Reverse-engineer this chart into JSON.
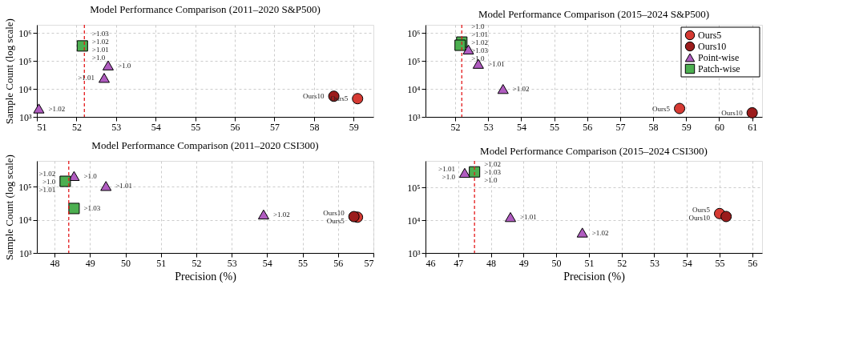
{
  "chart_data": [
    {
      "type": "scatter",
      "title": "Model Performance Comparison (2011–2020 S&P500)",
      "ylabel": "Sample Count (log scale)",
      "log": "y",
      "grid": true,
      "legend": false,
      "xlim": [
        51,
        59.5
      ],
      "xticks": [
        51,
        52,
        53,
        54,
        55,
        56,
        57,
        58,
        59
      ],
      "ylim": [
        1000,
        2000000
      ],
      "yticks": [
        {
          "value": 1000,
          "label": "10³"
        },
        {
          "value": 10000,
          "label": "10⁴"
        },
        {
          "value": 100000,
          "label": "10⁵"
        },
        {
          "value": 1000000,
          "label": "10⁶"
        }
      ],
      "series": [
        {
          "color": "#d63a33",
          "marker": "circle",
          "x": [
            59.1
          ],
          "values": [
            4500
          ]
        },
        {
          "color": "#9b1c1c",
          "marker": "circle",
          "x": [
            58.5
          ],
          "values": [
            5500
          ]
        },
        {
          "color": "#b05cc0",
          "marker": "triangle",
          "x": [
            52.8,
            52.7,
            51.05
          ],
          "values": [
            70000,
            25000,
            2000
          ]
        },
        {
          "color": "#4caf50",
          "marker": "square",
          "x": [
            52.15
          ],
          "values": [
            350000
          ]
        }
      ],
      "ref_lines": [
        {
          "axis": "x",
          "value": 52.2,
          "color": "#e41a1c",
          "line_style": "dashed"
        }
      ],
      "annotations": [
        {
          "text": ">1.03",
          "x": 52.15,
          "y": 350000
        },
        {
          "text": ">1.02",
          "x": 52.15,
          "y": 350000
        },
        {
          "text": ">1.01",
          "x": 52.15,
          "y": 350000
        },
        {
          "text": ">1.0",
          "x": 52.15,
          "y": 350000
        },
        {
          "text": ">1.0",
          "x": 52.8,
          "y": 70000
        },
        {
          "text": ">1.01",
          "x": 52.7,
          "y": 25000
        },
        {
          "text": ">1.02",
          "x": 51.05,
          "y": 2000
        },
        {
          "text": "Ours10",
          "x": 58.5,
          "y": 5500
        },
        {
          "text": "Ours5",
          "x": 59.1,
          "y": 4500
        }
      ]
    },
    {
      "type": "scatter",
      "title": "Model Performance Comparison (2015–2024 S&P500)",
      "log": "y",
      "grid": true,
      "legend": "top right",
      "xlim": [
        51.1,
        61.3
      ],
      "xticks": [
        52,
        53,
        54,
        55,
        56,
        57,
        58,
        59,
        60,
        61
      ],
      "ylim": [
        1000,
        2000000
      ],
      "yticks": [
        {
          "value": 1000,
          "label": "10³"
        },
        {
          "value": 10000,
          "label": "10⁴"
        },
        {
          "value": 100000,
          "label": "10⁵"
        },
        {
          "value": 1000000,
          "label": "10⁶"
        }
      ],
      "series": [
        {
          "name": "Ours5",
          "color": "#d63a33",
          "marker": "circle",
          "x": [
            58.8
          ],
          "values": [
            2000
          ]
        },
        {
          "name": "Ours10",
          "color": "#9b1c1c",
          "marker": "circle",
          "x": [
            61.0
          ],
          "values": [
            1400
          ]
        },
        {
          "name": "Point-wise",
          "color": "#b05cc0",
          "marker": "triangle",
          "x": [
            52.4,
            52.7,
            53.45
          ],
          "values": [
            260000,
            80000,
            10000
          ]
        },
        {
          "name": "Patch-wise",
          "color": "#4caf50",
          "marker": "square",
          "x": [
            52.2,
            52.15
          ],
          "values": [
            480000,
            370000
          ]
        }
      ],
      "ref_lines": [
        {
          "axis": "x",
          "value": 52.2,
          "color": "#e41a1c",
          "line_style": "dashed"
        }
      ],
      "annotations": [
        {
          "text": ">1.0",
          "x": 52.2,
          "y": 480000
        },
        {
          "text": ">1.01",
          "x": 52.15,
          "y": 370000
        },
        {
          "text": ">1.02",
          "x": 52.15,
          "y": 370000
        },
        {
          "text": ">1.03",
          "x": 52.15,
          "y": 370000
        },
        {
          "text": ">1.0",
          "x": 52.4,
          "y": 260000
        },
        {
          "text": ">1.01",
          "x": 52.7,
          "y": 80000
        },
        {
          "text": ">1.02",
          "x": 53.45,
          "y": 10000
        },
        {
          "text": "Ours5",
          "x": 58.8,
          "y": 2000
        },
        {
          "text": "Ours10",
          "x": 61.0,
          "y": 1400
        }
      ]
    },
    {
      "type": "scatter",
      "title": "Model Performance Comparison (2011–2020 CSI300)",
      "xlabel": "Precision (%)",
      "ylabel": "Sample Count (log scale)",
      "log": "y",
      "grid": true,
      "legend": false,
      "xlim": [
        47.5,
        57
      ],
      "xticks": [
        48,
        49,
        50,
        51,
        52,
        53,
        54,
        55,
        56,
        57
      ],
      "ylim": [
        1000,
        600000
      ],
      "yticks": [
        {
          "value": 1000,
          "label": "10³"
        },
        {
          "value": 10000,
          "label": "10⁴"
        },
        {
          "value": 100000,
          "label": "10⁵"
        }
      ],
      "series": [
        {
          "color": "#d63a33",
          "marker": "circle",
          "x": [
            56.55
          ],
          "values": [
            12000
          ]
        },
        {
          "color": "#9b1c1c",
          "marker": "circle",
          "x": [
            56.45
          ],
          "values": [
            12500
          ]
        },
        {
          "color": "#b05cc0",
          "marker": "triangle",
          "x": [
            48.55,
            49.45,
            53.9
          ],
          "values": [
            210000,
            105000,
            14500
          ]
        },
        {
          "color": "#4caf50",
          "marker": "square",
          "x": [
            48.3,
            48.55
          ],
          "values": [
            145000,
            22000
          ]
        }
      ],
      "ref_lines": [
        {
          "axis": "x",
          "value": 48.4,
          "color": "#e41a1c",
          "line_style": "dashed"
        }
      ],
      "annotations": [
        {
          "text": ">1.02",
          "x": 48.3,
          "y": 145000
        },
        {
          "text": ">1.0",
          "x": 48.3,
          "y": 145000
        },
        {
          "text": ">1.01",
          "x": 48.3,
          "y": 145000
        },
        {
          "text": ">1.03",
          "x": 48.55,
          "y": 22000
        },
        {
          "text": ">1.0",
          "x": 48.55,
          "y": 210000
        },
        {
          "text": ">1.01",
          "x": 49.45,
          "y": 105000
        },
        {
          "text": ">1.02",
          "x": 53.9,
          "y": 14500
        },
        {
          "text": "Ours10",
          "x": 56.45,
          "y": 12500
        },
        {
          "text": "Ours5",
          "x": 56.55,
          "y": 12000
        }
      ]
    },
    {
      "type": "scatter",
      "title": "Model Performance Comparison (2015–2024 CSI300)",
      "xlabel": "Precision (%)",
      "log": "y",
      "grid": true,
      "legend": false,
      "xlim": [
        46,
        56.3
      ],
      "xticks": [
        46,
        47,
        48,
        49,
        50,
        51,
        52,
        53,
        54,
        55,
        56
      ],
      "ylim": [
        1000,
        650000
      ],
      "yticks": [
        {
          "value": 1000,
          "label": "10³"
        },
        {
          "value": 10000,
          "label": "10⁴"
        },
        {
          "value": 100000,
          "label": "10⁵"
        }
      ],
      "series": [
        {
          "color": "#d63a33",
          "marker": "circle",
          "x": [
            55.0
          ],
          "values": [
            16000
          ]
        },
        {
          "color": "#9b1c1c",
          "marker": "circle",
          "x": [
            55.2
          ],
          "values": [
            13000
          ]
        },
        {
          "color": "#b05cc0",
          "marker": "triangle",
          "x": [
            47.2,
            48.6,
            50.8
          ],
          "values": [
            280000,
            12500,
            4200
          ]
        },
        {
          "color": "#4caf50",
          "marker": "square",
          "x": [
            47.5
          ],
          "values": [
            300000
          ]
        }
      ],
      "ref_lines": [
        {
          "axis": "x",
          "value": 47.5,
          "color": "#e41a1c",
          "line_style": "dashed"
        }
      ],
      "annotations": [
        {
          "text": ">1.02",
          "x": 47.5,
          "y": 300000
        },
        {
          "text": ">1.03",
          "x": 47.5,
          "y": 300000
        },
        {
          "text": ">1.0",
          "x": 47.5,
          "y": 300000
        },
        {
          "text": ">1.01",
          "x": 47.2,
          "y": 280000
        },
        {
          "text": ">1.0",
          "x": 47.2,
          "y": 280000
        },
        {
          "text": ">1.01",
          "x": 48.6,
          "y": 12500
        },
        {
          "text": ">1.02",
          "x": 50.8,
          "y": 4200
        },
        {
          "text": "Ours5",
          "x": 55.0,
          "y": 16000
        },
        {
          "text": "Ours10",
          "x": 55.2,
          "y": 13000
        }
      ]
    }
  ]
}
